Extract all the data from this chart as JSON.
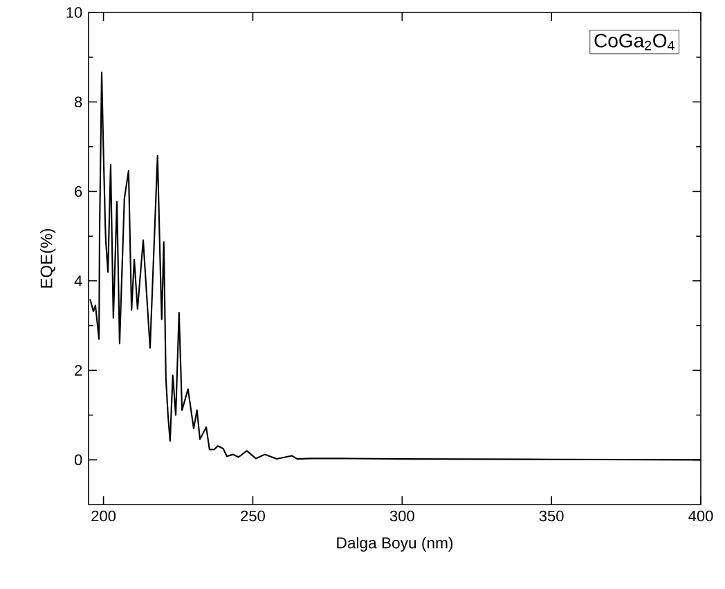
{
  "chart_data": {
    "type": "line",
    "xlabel": "Dalga Boyu (nm)",
    "ylabel": "EQE(%)",
    "annotations": [
      "CoGa$_{2}$O$_{4}$"
    ],
    "x": [
      195.5,
      196.6,
      197.3,
      198.5,
      198.7,
      199.4,
      199.9,
      200.6,
      200.8,
      201.5,
      202.4,
      203.3,
      204.5,
      205.4,
      207.0,
      208.4,
      209.4,
      210.3,
      211.4,
      213.3,
      215.6,
      218.1,
      219.1,
      219.5,
      220.2,
      220.9,
      221.6,
      222.3,
      223.2,
      224.2,
      225.3,
      226.3,
      228.3,
      230.2,
      231.3,
      232.3,
      234.4,
      235.5,
      237.1,
      238.3,
      240.1,
      241.3,
      243.4,
      245.2,
      248.0,
      251.0,
      254.0,
      258.0,
      263.1,
      264.9,
      269.5,
      280,
      300,
      350,
      400
    ],
    "values": [
      3.59,
      3.32,
      3.45,
      2.7,
      5.1,
      8.66,
      7.14,
      5.22,
      4.87,
      4.2,
      6.6,
      3.17,
      5.77,
      2.6,
      5.84,
      6.46,
      3.35,
      4.48,
      3.37,
      4.91,
      2.5,
      6.8,
      4.1,
      3.14,
      4.87,
      1.82,
      1.0,
      0.42,
      1.89,
      1.0,
      3.29,
      1.11,
      1.58,
      0.7,
      1.11,
      0.46,
      0.73,
      0.23,
      0.23,
      0.31,
      0.25,
      0.08,
      0.12,
      0.06,
      0.2,
      0.03,
      0.12,
      0.02,
      0.09,
      0.02,
      0.03,
      0.03,
      0.02,
      0.01,
      0.0
    ],
    "color": "#000000",
    "xlim": [
      195,
      400
    ],
    "ylim": [
      -1,
      10
    ],
    "xticks": [
      200,
      250,
      300,
      350,
      400
    ],
    "yticks": [
      0,
      2,
      4,
      6,
      8,
      10
    ]
  }
}
